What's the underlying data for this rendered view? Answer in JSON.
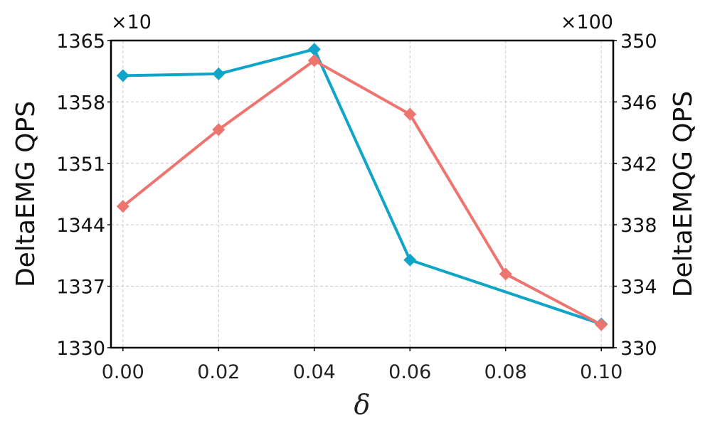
{
  "chart_data": {
    "type": "line",
    "x": [
      0.0,
      0.02,
      0.04,
      0.06,
      0.08,
      0.1
    ],
    "x_tick_labels": [
      "0.00",
      "0.02",
      "0.04",
      "0.06",
      "0.08",
      "0.10"
    ],
    "xlabel": "δ",
    "xlim": [
      -0.0025,
      0.1025
    ],
    "y_left": {
      "label": "DeltaEMG QPS",
      "multiplier": "×10",
      "lim": [
        1330,
        1365
      ],
      "ticks": [
        1330,
        1337,
        1344,
        1351,
        1358,
        1365
      ],
      "tick_labels": [
        "1330",
        "1337",
        "1344",
        "1351",
        "1358",
        "1365"
      ]
    },
    "y_right": {
      "label": "DeltaEMQG QPS",
      "multiplier": "×100",
      "lim": [
        330,
        350
      ],
      "ticks": [
        330,
        334,
        338,
        342,
        346,
        350
      ],
      "tick_labels": [
        "330",
        "334",
        "338",
        "342",
        "346",
        "350"
      ]
    },
    "series": [
      {
        "axis": "left",
        "color": "#0ea5c8",
        "marker": "diamond",
        "x": [
          0.0,
          0.02,
          0.04,
          0.06,
          0.1
        ],
        "values": [
          1361.0,
          1361.2,
          1364.0,
          1340.0,
          1332.7
        ]
      },
      {
        "axis": "right",
        "color": "#ee7470",
        "marker": "diamond",
        "x": [
          0.0,
          0.02,
          0.04,
          0.06,
          0.08,
          0.1
        ],
        "values": [
          339.2,
          344.2,
          348.7,
          345.2,
          334.8,
          331.5
        ]
      }
    ],
    "grid": true
  }
}
